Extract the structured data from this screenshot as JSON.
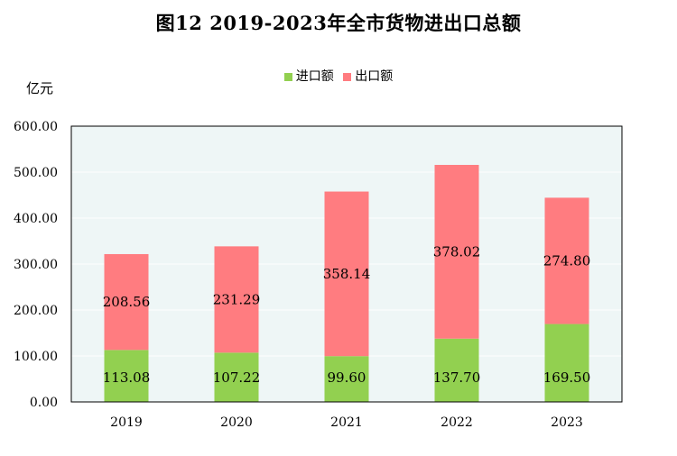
{
  "chart_data": {
    "type": "bar",
    "stacked": true,
    "title": "图12  2019-2023年全市货物进出口总额",
    "ylabel": "亿元",
    "xlabel": "",
    "categories": [
      "2019",
      "2020",
      "2021",
      "2022",
      "2023"
    ],
    "series": [
      {
        "name": "进口额",
        "values": [
          113.08,
          107.22,
          99.6,
          137.7,
          169.5
        ],
        "labels": [
          "113.08",
          "107.22",
          "99.60",
          "137.70",
          "169.50"
        ],
        "color": "#92d050"
      },
      {
        "name": "出口额",
        "values": [
          208.56,
          231.29,
          358.14,
          378.02,
          274.8
        ],
        "labels": [
          "208.56",
          "231.29",
          "358.14",
          "378.02",
          "274.80"
        ],
        "color": "#ff7c80"
      }
    ],
    "ylim": [
      0,
      600
    ],
    "yticks": [
      "0.00",
      "100.00",
      "200.00",
      "300.00",
      "400.00",
      "500.00",
      "600.00"
    ],
    "grid": true,
    "legend": "top",
    "plot_background": "#eef6f6"
  }
}
